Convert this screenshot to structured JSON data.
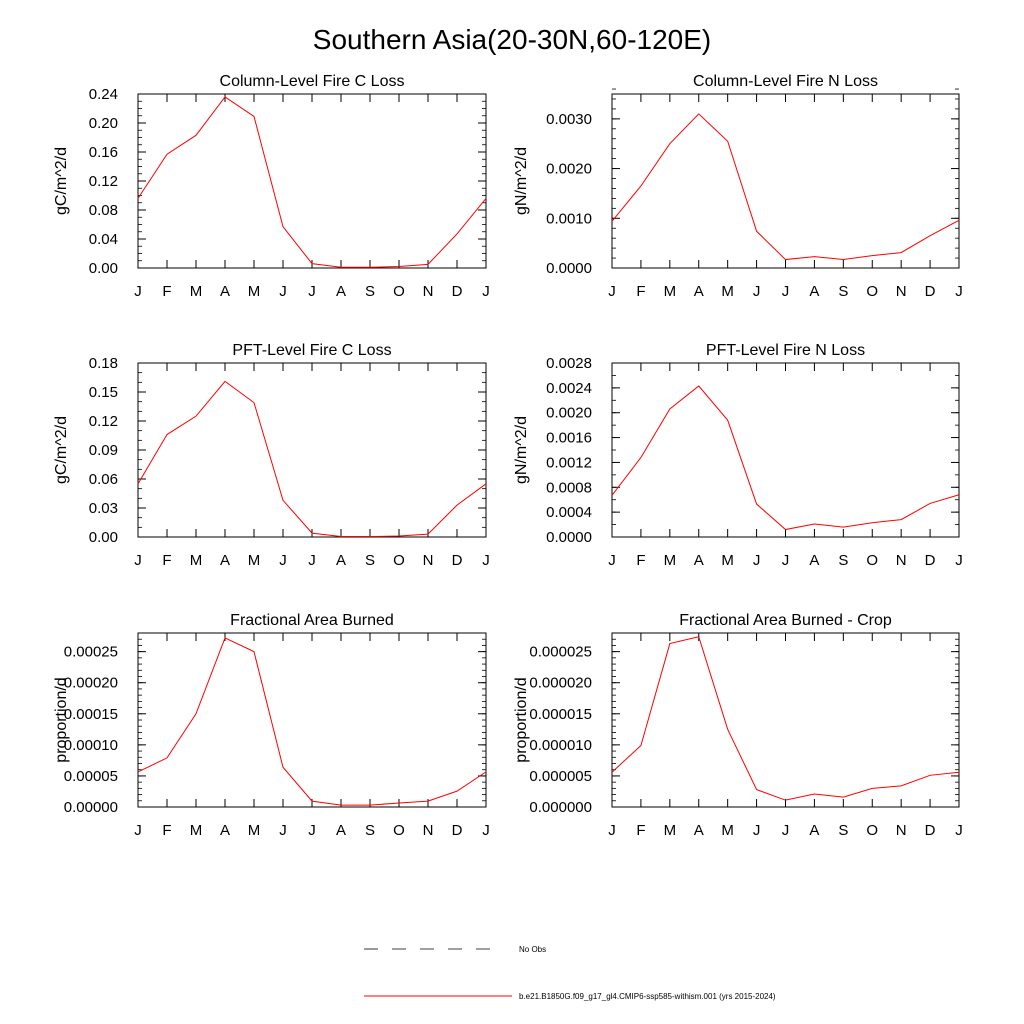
{
  "figure": {
    "title": "Southern Asia(20-30N,60-120E)",
    "legend": [
      {
        "label": "No Obs",
        "style": "dashed",
        "color": "#000000"
      },
      {
        "label": "b.e21.B1850G.f09_g17_gl4.CMIP6-ssp585-withism.001 (yrs 2015-2024)",
        "style": "solid",
        "color": "#ff0000"
      }
    ]
  },
  "chart_data": [
    {
      "type": "line",
      "title": "Column-Level Fire C Loss",
      "xlabel": "",
      "ylabel": "gC/m^2/d",
      "categories": [
        "J",
        "F",
        "M",
        "A",
        "M",
        "J",
        "J",
        "A",
        "S",
        "O",
        "N",
        "D",
        "J"
      ],
      "ylim": [
        0,
        0.24
      ],
      "yticks": [
        0,
        0.04,
        0.08,
        0.12,
        0.16,
        0.2,
        0.24
      ],
      "ytick_labels": [
        "0.00",
        "0.04",
        "0.08",
        "0.12",
        "0.16",
        "0.20",
        "0.24"
      ],
      "yminor": 0.01,
      "series": [
        {
          "color": "#ff0000",
          "values": [
            0.096,
            0.157,
            0.183,
            0.236,
            0.209,
            0.057,
            0.006,
            0.001,
            0.001,
            0.002,
            0.005,
            0.047,
            0.096
          ]
        }
      ]
    },
    {
      "type": "line",
      "title": "Column-Level Fire N Loss",
      "xlabel": "",
      "ylabel": "gN/m^2/d",
      "categories": [
        "J",
        "F",
        "M",
        "A",
        "M",
        "J",
        "J",
        "A",
        "S",
        "O",
        "N",
        "D",
        "J"
      ],
      "ylim": [
        0,
        0.0035
      ],
      "yticks": [
        0,
        0.001,
        0.002,
        0.003
      ],
      "ytick_labels": [
        "0.0000",
        "0.0010",
        "0.0020",
        "0.0030"
      ],
      "yminor": 0.0002,
      "series": [
        {
          "color": "#ff0000",
          "values": [
            0.00094,
            0.00165,
            0.0025,
            0.0031,
            0.00255,
            0.00074,
            0.00017,
            0.00023,
            0.00017,
            0.00025,
            0.00031,
            0.00065,
            0.00096
          ]
        }
      ]
    },
    {
      "type": "line",
      "title": "PFT-Level Fire C Loss",
      "xlabel": "",
      "ylabel": "gC/m^2/d",
      "categories": [
        "J",
        "F",
        "M",
        "A",
        "M",
        "J",
        "J",
        "A",
        "S",
        "O",
        "N",
        "D",
        "J"
      ],
      "ylim": [
        0,
        0.18
      ],
      "yticks": [
        0,
        0.03,
        0.06,
        0.09,
        0.12,
        0.15,
        0.18
      ],
      "ytick_labels": [
        "0.00",
        "0.03",
        "0.06",
        "0.09",
        "0.12",
        "0.15",
        "0.18"
      ],
      "yminor": 0.01,
      "series": [
        {
          "color": "#ff0000",
          "values": [
            0.055,
            0.106,
            0.125,
            0.161,
            0.139,
            0.038,
            0.004,
            0.0005,
            0.0005,
            0.001,
            0.003,
            0.033,
            0.055
          ]
        }
      ]
    },
    {
      "type": "line",
      "title": "PFT-Level Fire N Loss",
      "xlabel": "",
      "ylabel": "gN/m^2/d",
      "categories": [
        "J",
        "F",
        "M",
        "A",
        "M",
        "J",
        "J",
        "A",
        "S",
        "O",
        "N",
        "D",
        "J"
      ],
      "ylim": [
        0,
        0.0028
      ],
      "yticks": [
        0,
        0.0004,
        0.0008,
        0.0012,
        0.0016,
        0.002,
        0.0024,
        0.0028
      ],
      "ytick_labels": [
        "0.0000",
        "0.0004",
        "0.0008",
        "0.0012",
        "0.0016",
        "0.0020",
        "0.0024",
        "0.0028"
      ],
      "yminor": 0.0002,
      "series": [
        {
          "color": "#ff0000",
          "values": [
            0.00067,
            0.00128,
            0.00206,
            0.00243,
            0.00188,
            0.00053,
            0.00012,
            0.00021,
            0.00016,
            0.00023,
            0.00028,
            0.00054,
            0.00068
          ]
        }
      ]
    },
    {
      "type": "line",
      "title": "Fractional Area Burned",
      "xlabel": "",
      "ylabel": "proportion/d",
      "categories": [
        "J",
        "F",
        "M",
        "A",
        "M",
        "J",
        "J",
        "A",
        "S",
        "O",
        "N",
        "D",
        "J"
      ],
      "ylim": [
        0,
        0.00028
      ],
      "yticks": [
        0,
        5e-05,
        0.0001,
        0.00015,
        0.0002,
        0.00025
      ],
      "ytick_labels": [
        "0.00000",
        "0.00005",
        "0.00010",
        "0.00015",
        "0.00020",
        "0.00025"
      ],
      "yminor": 1e-05,
      "series": [
        {
          "color": "#ff0000",
          "values": [
            5.65e-05,
            7.9e-05,
            0.00015,
            0.000272,
            0.00025,
            6.4e-05,
            9.5e-06,
            3e-06,
            3e-06,
            6.5e-06,
            9.5e-06,
            2.55e-05,
            5.65e-05
          ]
        }
      ]
    },
    {
      "type": "line",
      "title": "Fractional Area Burned - Crop",
      "xlabel": "",
      "ylabel": "proportion/d",
      "categories": [
        "J",
        "F",
        "M",
        "A",
        "M",
        "J",
        "J",
        "A",
        "S",
        "O",
        "N",
        "D",
        "J"
      ],
      "ylim": [
        0,
        2.8e-05
      ],
      "yticks": [
        0,
        5e-06,
        1e-05,
        1.5e-05,
        2e-05,
        2.5e-05
      ],
      "ytick_labels": [
        "0.000000",
        "0.000005",
        "0.000010",
        "0.000015",
        "0.000020",
        "0.000025"
      ],
      "yminor": 1e-06,
      "series": [
        {
          "color": "#ff0000",
          "values": [
            5.6e-06,
            9.9e-06,
            2.63e-05,
            2.74e-05,
            1.25e-05,
            2.8e-06,
            1.1e-06,
            2.1e-06,
            1.6e-06,
            3e-06,
            3.4e-06,
            5.1e-06,
            5.6e-06
          ]
        }
      ]
    }
  ]
}
